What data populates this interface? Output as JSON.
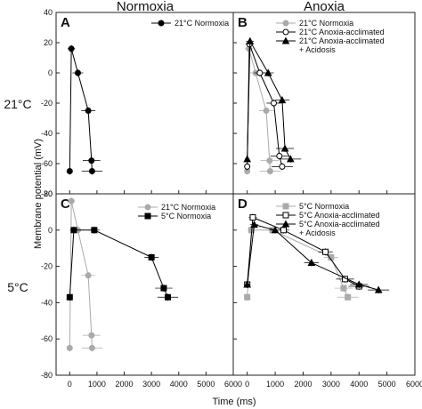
{
  "figure": {
    "col_titles": [
      "Normoxia",
      "Anoxia"
    ],
    "row_labels": [
      "21°C",
      "5°C"
    ],
    "ylabel": "Membrane potential (mV)",
    "xlabel": "Time (ms)",
    "top_yticks": [
      "40",
      "20",
      "0",
      "-20",
      "-40",
      "-60",
      "-80"
    ],
    "bottom_yticks": [
      "20",
      "0",
      "-20",
      "-40",
      "-60",
      "-80"
    ],
    "xticks": [
      "0",
      "1000",
      "2000",
      "3000",
      "4000",
      "5000",
      "6000"
    ]
  },
  "chart_data": [
    {
      "type": "line",
      "panel": "A",
      "xlim": [
        -500,
        6000
      ],
      "ylim": [
        -80,
        40
      ],
      "series": [
        {
          "name": "21°C Normoxia",
          "color": "#000000",
          "marker": "circle-filled",
          "x": [
            0,
            60,
            300,
            680,
            800,
            820
          ],
          "y": [
            -65,
            16,
            0,
            -25,
            -58,
            -65
          ]
        }
      ]
    },
    {
      "type": "line",
      "panel": "B",
      "xlim": [
        -500,
        6000
      ],
      "ylim": [
        -80,
        40
      ],
      "series": [
        {
          "name": "21°C Normoxia",
          "color": "#aaaaaa",
          "marker": "circle-filled",
          "x": [
            0,
            60,
            300,
            680,
            800,
            820
          ],
          "y": [
            -65,
            16,
            0,
            -25,
            -58,
            -65
          ]
        },
        {
          "name": "21°C Anoxia-acclimated",
          "color": "#000000",
          "marker": "circle-open",
          "x": [
            0,
            80,
            450,
            950,
            1150,
            1250
          ],
          "y": [
            -62,
            19,
            0,
            -20,
            -55,
            -62
          ]
        },
        {
          "name": "21°C Anoxia-acclimated\n+ Acidosis",
          "color": "#000000",
          "marker": "triangle-filled",
          "x": [
            0,
            100,
            750,
            1250,
            1350,
            1550
          ],
          "y": [
            -57,
            21,
            0,
            -18,
            -50,
            -57
          ]
        }
      ]
    },
    {
      "type": "line",
      "panel": "C",
      "xlim": [
        -500,
        6000
      ],
      "ylim": [
        -80,
        20
      ],
      "series": [
        {
          "name": "21°C Normoxia",
          "color": "#aaaaaa",
          "marker": "circle-filled",
          "x": [
            0,
            60,
            300,
            680,
            800,
            820
          ],
          "y": [
            -65,
            16,
            0,
            -25,
            -58,
            -65
          ]
        },
        {
          "name": "5°C Normoxia",
          "color": "#000000",
          "marker": "square-filled",
          "x": [
            0,
            150,
            900,
            3000,
            3450,
            3600
          ],
          "y": [
            -37,
            0,
            0,
            -15,
            -32,
            -37
          ]
        }
      ]
    },
    {
      "type": "line",
      "panel": "D",
      "xlim": [
        -500,
        6000
      ],
      "ylim": [
        -80,
        20
      ],
      "series": [
        {
          "name": "5°C Normoxia",
          "color": "#aaaaaa",
          "marker": "square-filled",
          "x": [
            0,
            150,
            900,
            3000,
            3450,
            3600
          ],
          "y": [
            -37,
            0,
            0,
            -15,
            -32,
            -37
          ]
        },
        {
          "name": "5°C Anoxia-acclimated",
          "color": "#000000",
          "marker": "square-open",
          "x": [
            0,
            200,
            1300,
            2800,
            3500,
            4000
          ],
          "y": [
            -30,
            7,
            0,
            -12,
            -27,
            -31
          ]
        },
        {
          "name": "5°C Anoxia-acclimated\n+ Acidosis",
          "color": "#000000",
          "marker": "triangle-filled",
          "x": [
            0,
            250,
            1000,
            2300,
            4000,
            4700
          ],
          "y": [
            -30,
            3,
            0,
            -18,
            -30,
            -33
          ]
        }
      ]
    }
  ]
}
